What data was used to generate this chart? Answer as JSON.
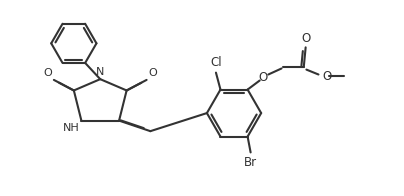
{
  "bg": "#ffffff",
  "lc": "#333333",
  "lw": 1.5,
  "figsize": [
    4.04,
    1.96
  ],
  "dpi": 100,
  "xlim": [
    0,
    10.5
  ],
  "ylim": [
    0,
    5.2
  ]
}
